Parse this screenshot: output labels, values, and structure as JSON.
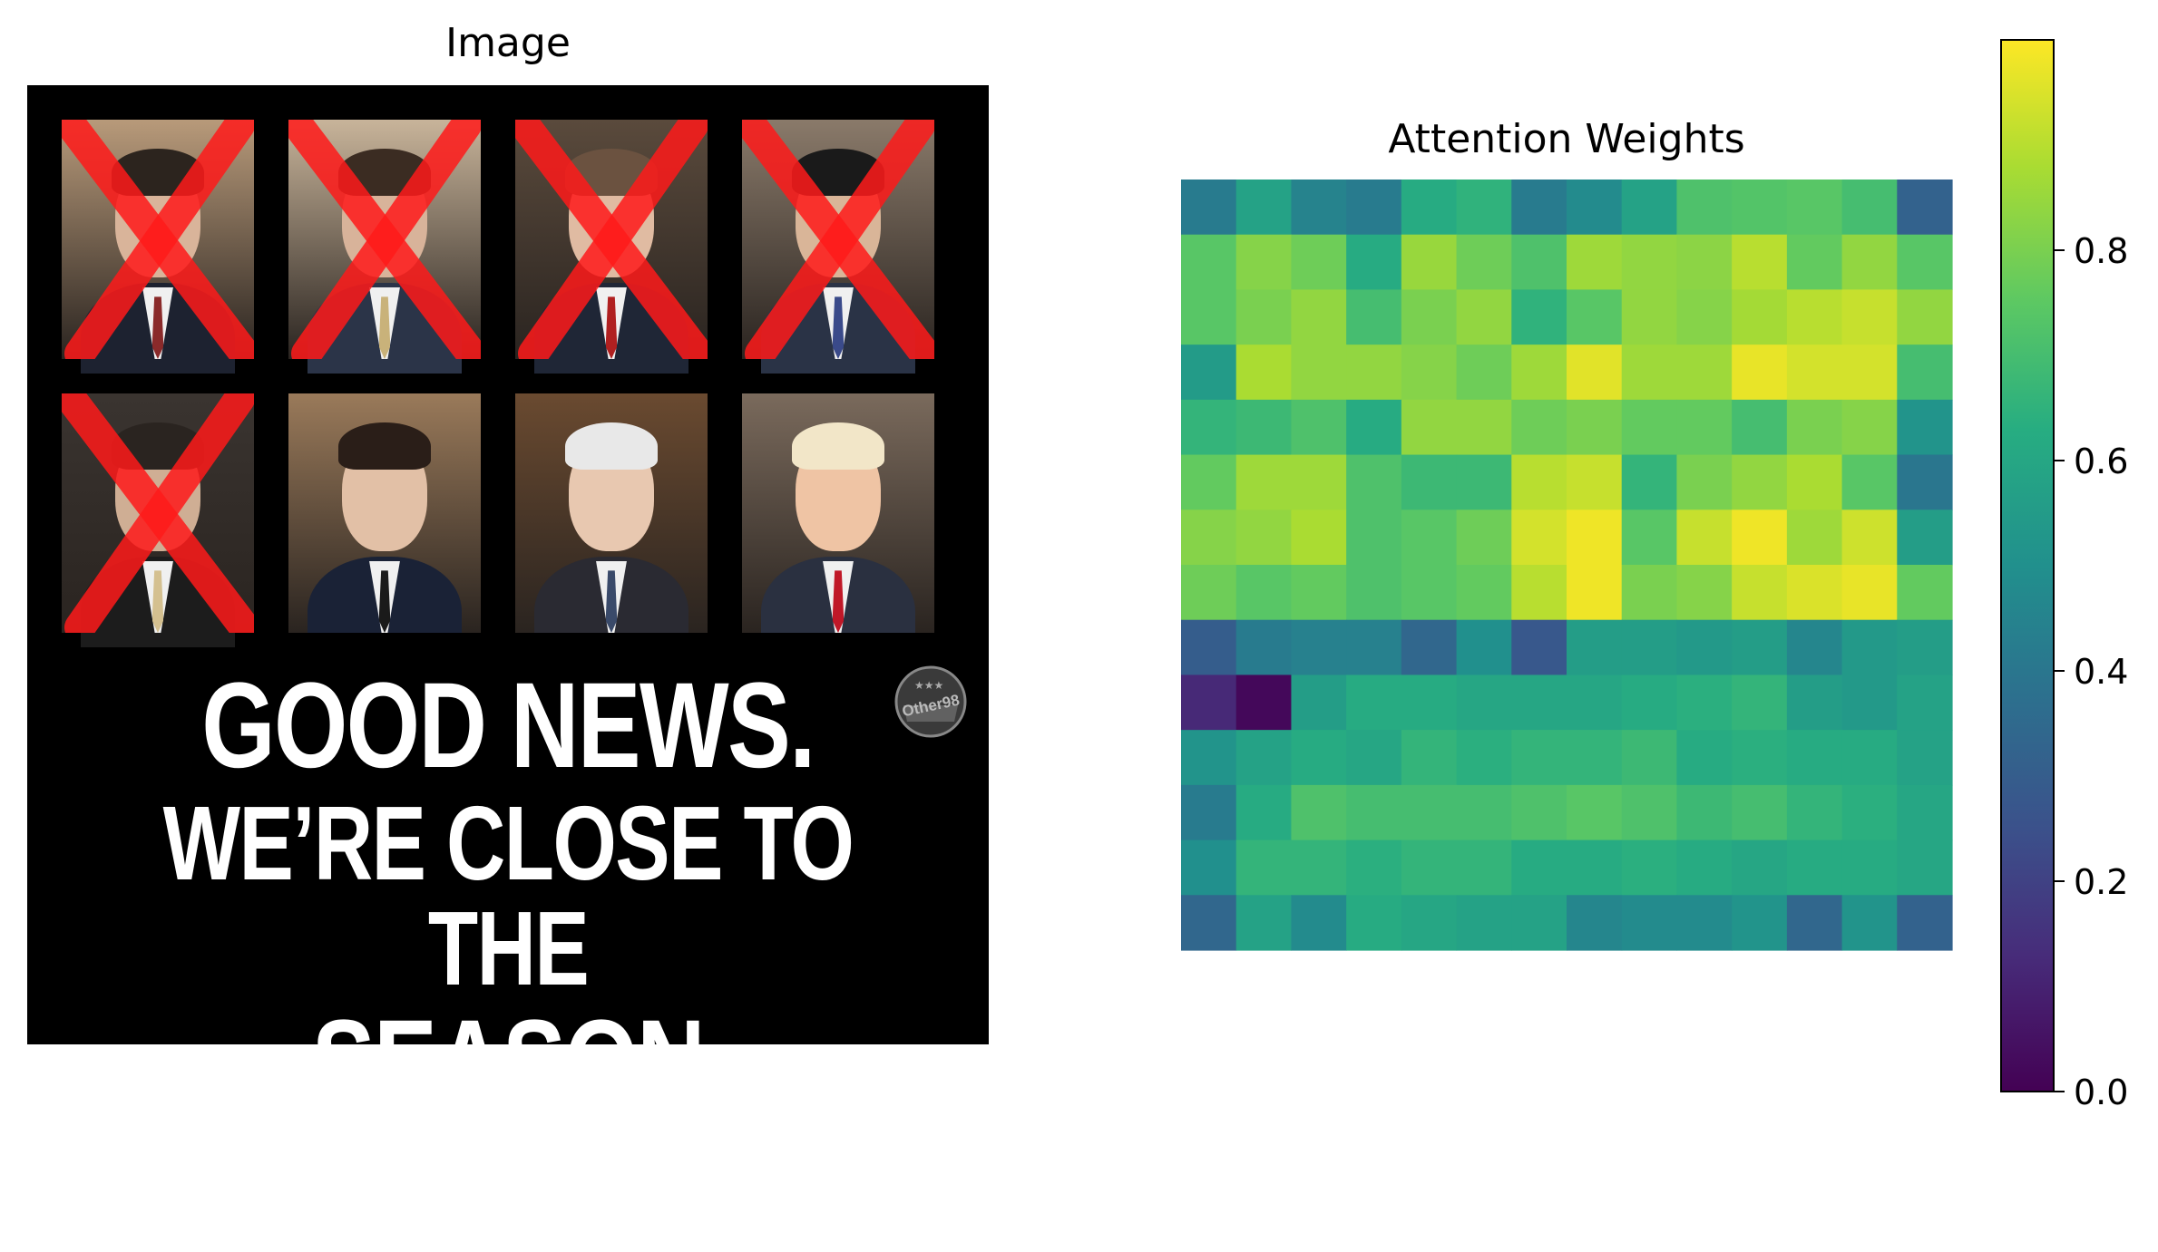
{
  "panels": {
    "image_title": "Image",
    "heatmap_title": "Attention Weights"
  },
  "meme": {
    "headline_line1": "GOOD NEWS.",
    "headline_line2": "WE’RE CLOSE TO THE",
    "headline_line3": "SEASON FINALE",
    "logo_text": "Other98",
    "photos": [
      {
        "crossed": true
      },
      {
        "crossed": true
      },
      {
        "crossed": true
      },
      {
        "crossed": true
      },
      {
        "crossed": true
      },
      {
        "crossed": false
      },
      {
        "crossed": false
      },
      {
        "crossed": false
      }
    ]
  },
  "chart_data": {
    "type": "heatmap",
    "title": "Attention Weights",
    "colormap": "viridis",
    "vmin": 0.0,
    "vmax": 1.0,
    "colorbar_ticks": [
      "0.0",
      "0.2",
      "0.4",
      "0.6",
      "0.8"
    ],
    "colorbar_tick_values": [
      0.0,
      0.2,
      0.4,
      0.6,
      0.8
    ],
    "rows": 14,
    "cols": 14,
    "values": [
      [
        0.42,
        0.58,
        0.45,
        0.42,
        0.62,
        0.65,
        0.42,
        0.48,
        0.58,
        0.72,
        0.73,
        0.74,
        0.7,
        0.32
      ],
      [
        0.74,
        0.82,
        0.78,
        0.62,
        0.85,
        0.78,
        0.72,
        0.86,
        0.84,
        0.83,
        0.9,
        0.76,
        0.84,
        0.74
      ],
      [
        0.74,
        0.8,
        0.84,
        0.7,
        0.8,
        0.84,
        0.65,
        0.74,
        0.84,
        0.82,
        0.87,
        0.9,
        0.92,
        0.84
      ],
      [
        0.55,
        0.88,
        0.84,
        0.84,
        0.82,
        0.78,
        0.86,
        0.96,
        0.86,
        0.86,
        0.97,
        0.94,
        0.94,
        0.7
      ],
      [
        0.66,
        0.68,
        0.72,
        0.62,
        0.84,
        0.84,
        0.78,
        0.8,
        0.76,
        0.76,
        0.7,
        0.8,
        0.82,
        0.52
      ],
      [
        0.76,
        0.86,
        0.86,
        0.72,
        0.68,
        0.68,
        0.9,
        0.92,
        0.66,
        0.8,
        0.84,
        0.88,
        0.74,
        0.4
      ],
      [
        0.82,
        0.84,
        0.88,
        0.72,
        0.74,
        0.78,
        0.94,
        0.98,
        0.74,
        0.92,
        0.98,
        0.86,
        0.93,
        0.56
      ],
      [
        0.78,
        0.74,
        0.76,
        0.72,
        0.74,
        0.76,
        0.9,
        0.98,
        0.8,
        0.82,
        0.92,
        0.95,
        0.97,
        0.76
      ],
      [
        0.3,
        0.42,
        0.44,
        0.44,
        0.34,
        0.5,
        0.28,
        0.56,
        0.56,
        0.54,
        0.56,
        0.46,
        0.54,
        0.56
      ],
      [
        0.12,
        0.02,
        0.56,
        0.62,
        0.62,
        0.6,
        0.6,
        0.6,
        0.62,
        0.64,
        0.66,
        0.56,
        0.54,
        0.58
      ],
      [
        0.52,
        0.58,
        0.62,
        0.6,
        0.66,
        0.64,
        0.66,
        0.66,
        0.68,
        0.62,
        0.64,
        0.62,
        0.62,
        0.58
      ],
      [
        0.42,
        0.62,
        0.72,
        0.7,
        0.7,
        0.7,
        0.72,
        0.74,
        0.72,
        0.68,
        0.7,
        0.66,
        0.64,
        0.6
      ],
      [
        0.5,
        0.66,
        0.66,
        0.64,
        0.66,
        0.66,
        0.62,
        0.62,
        0.64,
        0.62,
        0.6,
        0.62,
        0.62,
        0.6
      ],
      [
        0.34,
        0.58,
        0.48,
        0.62,
        0.6,
        0.58,
        0.58,
        0.46,
        0.48,
        0.48,
        0.52,
        0.34,
        0.52,
        0.32
      ]
    ]
  }
}
